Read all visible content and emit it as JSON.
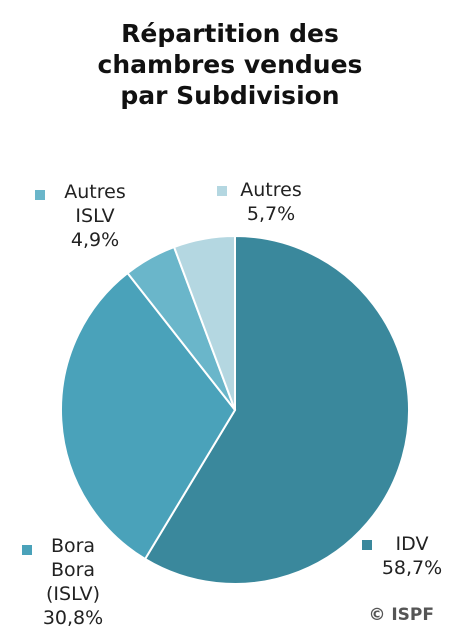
{
  "chart_data": {
    "type": "pie",
    "title": "Répartition des chambres vendues par Subdivision",
    "categories": [
      "IDV",
      "Bora Bora (ISLV)",
      "Autres ISLV",
      "Autres"
    ],
    "values": [
      58.7,
      30.8,
      4.9,
      5.7
    ],
    "value_labels": [
      "58,7%",
      "30,8%",
      "4,9%",
      "5,7%"
    ],
    "colors": [
      "#3a889c",
      "#4aa2ba",
      "#6ab6ca",
      "#b4d7e1"
    ],
    "source": "© ISPF"
  }
}
